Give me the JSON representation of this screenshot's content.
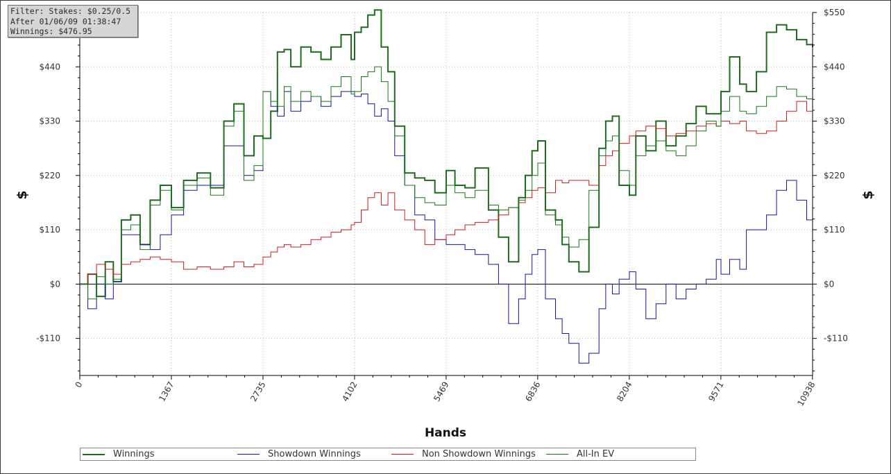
{
  "filter_box": {
    "lines": [
      "Filter: Stakes: $0.25/0.5 NL",
      "After 01/06/09 01:38:47",
      "Winnings: $476.95"
    ]
  },
  "chart_data": {
    "type": "line",
    "title": "",
    "xlabel": "Hands",
    "ylabel": "$",
    "xlim": [
      0,
      10938
    ],
    "ylim": [
      -185,
      550
    ],
    "x_ticks": [
      0,
      1367,
      2735,
      4102,
      5469,
      6836,
      8204,
      9571,
      10938
    ],
    "y_ticks": [
      -110,
      0,
      110,
      220,
      330,
      440,
      550
    ],
    "y_tick_labels": [
      "-$110",
      "$0",
      "$110",
      "$220",
      "$330",
      "$440",
      "$550"
    ],
    "grid": true,
    "legend_position": "bottom",
    "series": [
      {
        "name": "Winnings",
        "color": "#1e6b1e",
        "x": [
          0,
          120,
          250,
          380,
          500,
          620,
          760,
          900,
          1050,
          1200,
          1367,
          1550,
          1750,
          1950,
          2150,
          2300,
          2450,
          2600,
          2735,
          2850,
          2950,
          3050,
          3150,
          3300,
          3450,
          3600,
          3750,
          3900,
          4050,
          4102,
          4200,
          4300,
          4400,
          4500,
          4600,
          4700,
          4850,
          5000,
          5150,
          5300,
          5469,
          5600,
          5750,
          5900,
          6100,
          6250,
          6400,
          6550,
          6650,
          6750,
          6836,
          6950,
          7100,
          7200,
          7300,
          7450,
          7600,
          7750,
          7850,
          7950,
          8050,
          8204,
          8300,
          8450,
          8600,
          8750,
          8900,
          9050,
          9200,
          9350,
          9500,
          9571,
          9700,
          9850,
          9950,
          10100,
          10250,
          10400,
          10550,
          10700,
          10850,
          10938
        ],
        "values": [
          0,
          20,
          -25,
          45,
          5,
          130,
          140,
          80,
          170,
          200,
          155,
          210,
          225,
          195,
          330,
          365,
          260,
          300,
          295,
          350,
          470,
          475,
          440,
          480,
          470,
          455,
          480,
          505,
          455,
          510,
          520,
          545,
          555,
          480,
          430,
          320,
          225,
          215,
          210,
          185,
          230,
          200,
          195,
          235,
          150,
          95,
          45,
          175,
          220,
          270,
          290,
          150,
          130,
          80,
          45,
          25,
          115,
          275,
          330,
          340,
          200,
          180,
          300,
          270,
          330,
          280,
          300,
          325,
          360,
          345,
          345,
          390,
          460,
          405,
          390,
          430,
          510,
          525,
          515,
          495,
          485,
          480
        ]
      },
      {
        "name": "Showdown Winnings",
        "color": "#1212a8",
        "x": [
          0,
          120,
          250,
          380,
          500,
          620,
          760,
          900,
          1050,
          1200,
          1367,
          1550,
          1750,
          1950,
          2150,
          2300,
          2450,
          2600,
          2735,
          2850,
          2950,
          3050,
          3150,
          3300,
          3450,
          3600,
          3750,
          3900,
          4050,
          4102,
          4200,
          4300,
          4400,
          4500,
          4600,
          4700,
          4850,
          5000,
          5150,
          5300,
          5469,
          5600,
          5750,
          5900,
          6100,
          6250,
          6400,
          6550,
          6650,
          6750,
          6836,
          6950,
          7100,
          7200,
          7300,
          7450,
          7600,
          7750,
          7850,
          7950,
          8050,
          8204,
          8300,
          8450,
          8600,
          8750,
          8900,
          9050,
          9200,
          9350,
          9500,
          9571,
          9700,
          9850,
          9950,
          10100,
          10250,
          10400,
          10550,
          10700,
          10850,
          10938
        ],
        "values": [
          0,
          -50,
          0,
          -30,
          5,
          100,
          100,
          80,
          70,
          100,
          140,
          190,
          200,
          200,
          280,
          280,
          220,
          230,
          390,
          360,
          340,
          390,
          350,
          370,
          380,
          360,
          380,
          390,
          390,
          380,
          385,
          365,
          340,
          355,
          330,
          260,
          200,
          140,
          130,
          90,
          80,
          80,
          70,
          60,
          40,
          0,
          -80,
          -30,
          20,
          60,
          70,
          -30,
          -70,
          -100,
          -120,
          -160,
          -140,
          -50,
          0,
          -20,
          10,
          25,
          -10,
          -70,
          -40,
          0,
          -30,
          -10,
          0,
          10,
          50,
          20,
          50,
          30,
          110,
          110,
          140,
          190,
          210,
          170,
          130,
          150
        ]
      },
      {
        "name": "Non Showdown Winnings",
        "color": "#d11a1a",
        "x": [
          0,
          120,
          250,
          380,
          500,
          620,
          760,
          900,
          1050,
          1200,
          1367,
          1550,
          1750,
          1950,
          2150,
          2300,
          2450,
          2600,
          2735,
          2850,
          2950,
          3050,
          3150,
          3300,
          3450,
          3600,
          3750,
          3900,
          4050,
          4102,
          4200,
          4300,
          4400,
          4500,
          4600,
          4700,
          4850,
          5000,
          5150,
          5300,
          5469,
          5600,
          5750,
          5900,
          6100,
          6250,
          6400,
          6550,
          6650,
          6750,
          6836,
          6950,
          7100,
          7200,
          7300,
          7450,
          7600,
          7750,
          7850,
          7950,
          8050,
          8204,
          8300,
          8450,
          8600,
          8750,
          8900,
          9050,
          9200,
          9350,
          9500,
          9571,
          9700,
          9850,
          9950,
          10100,
          10250,
          10400,
          10550,
          10700,
          10850,
          10938
        ],
        "values": [
          0,
          20,
          40,
          30,
          20,
          40,
          45,
          50,
          55,
          50,
          45,
          30,
          35,
          30,
          35,
          45,
          35,
          40,
          55,
          65,
          75,
          80,
          75,
          80,
          90,
          95,
          105,
          110,
          120,
          125,
          150,
          175,
          185,
          160,
          185,
          150,
          130,
          110,
          80,
          90,
          100,
          110,
          120,
          125,
          130,
          140,
          155,
          165,
          175,
          190,
          195,
          185,
          210,
          205,
          210,
          210,
          200,
          240,
          260,
          270,
          285,
          300,
          310,
          320,
          315,
          300,
          305,
          310,
          320,
          325,
          320,
          330,
          325,
          330,
          310,
          305,
          310,
          330,
          350,
          370,
          350,
          340
        ]
      },
      {
        "name": "All-In EV",
        "color": "#137a13",
        "x": [
          0,
          120,
          250,
          380,
          500,
          620,
          760,
          900,
          1050,
          1200,
          1367,
          1550,
          1750,
          1950,
          2150,
          2300,
          2450,
          2600,
          2735,
          2850,
          2950,
          3050,
          3150,
          3300,
          3450,
          3600,
          3750,
          3900,
          4050,
          4102,
          4200,
          4300,
          4400,
          4500,
          4600,
          4700,
          4850,
          5000,
          5150,
          5300,
          5469,
          5600,
          5750,
          5900,
          6100,
          6250,
          6400,
          6550,
          6650,
          6750,
          6836,
          6950,
          7100,
          7200,
          7300,
          7450,
          7600,
          7750,
          7850,
          7950,
          8050,
          8204,
          8300,
          8450,
          8600,
          8750,
          8900,
          9050,
          9200,
          9350,
          9500,
          9571,
          9700,
          9850,
          9950,
          10100,
          10250,
          10400,
          10550,
          10700,
          10850,
          10938
        ],
        "values": [
          0,
          -30,
          15,
          0,
          10,
          110,
          120,
          70,
          160,
          190,
          150,
          200,
          215,
          180,
          320,
          350,
          210,
          240,
          390,
          370,
          360,
          400,
          370,
          390,
          380,
          370,
          400,
          420,
          385,
          390,
          420,
          430,
          440,
          410,
          370,
          300,
          200,
          175,
          165,
          160,
          200,
          185,
          175,
          190,
          160,
          150,
          155,
          170,
          190,
          220,
          245,
          140,
          120,
          95,
          75,
          90,
          190,
          260,
          290,
          300,
          230,
          200,
          260,
          280,
          290,
          270,
          260,
          280,
          310,
          330,
          320,
          350,
          380,
          350,
          345,
          360,
          380,
          400,
          395,
          380,
          375,
          370
        ]
      }
    ]
  }
}
